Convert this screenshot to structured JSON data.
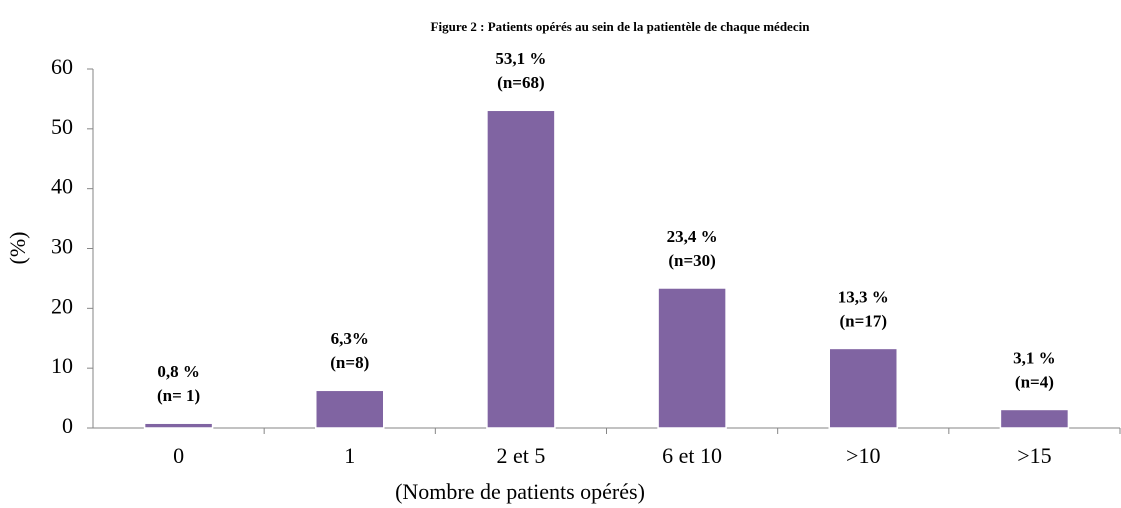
{
  "chart_data": {
    "type": "bar",
    "title": "Figure  2 : Patients opérés au sein de la patientèle de chaque médecin",
    "x_label": "(Nombre de patients opérés)",
    "y_label": "(%)",
    "categories": [
      "0",
      "1",
      "2 et 5",
      "6 et 10",
      ">10",
      ">15"
    ],
    "values": [
      0.8,
      6.3,
      53.1,
      23.4,
      13.3,
      3.1
    ],
    "value_labels": [
      "0,8 %",
      "6,3%",
      "53,1 %",
      "23,4 %",
      "13,3 %",
      "3,1 %"
    ],
    "n_labels": [
      "(n= 1)",
      "(n=8)",
      "(n=68)",
      "(n=30)",
      "(n=17)",
      "(n=4)"
    ],
    "color": "#8064a2",
    "ylim": [
      0,
      60
    ],
    "yticks": [
      0,
      10,
      20,
      30,
      40,
      50,
      60
    ],
    "grid": false
  }
}
